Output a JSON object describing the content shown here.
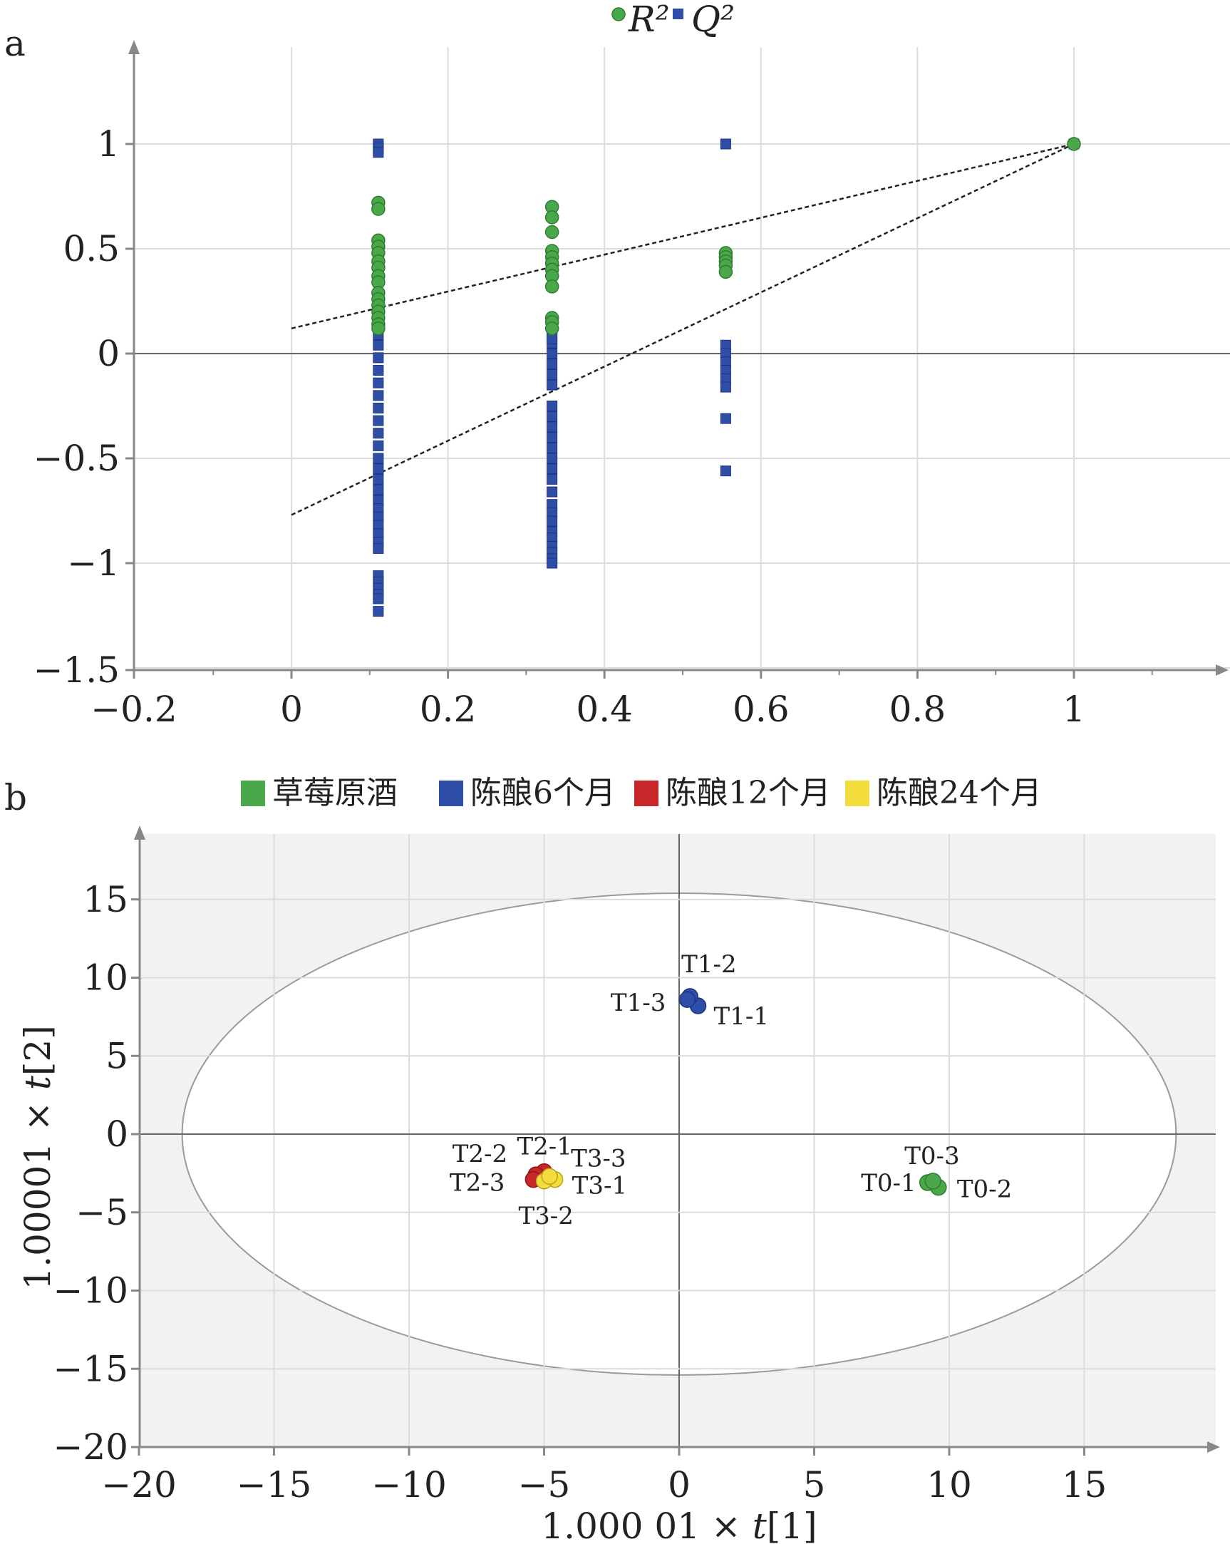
{
  "colors": {
    "green": "#4aa84a",
    "green_stroke": "#2e7d32",
    "blue": "#2f4ea8",
    "red": "#c8262b",
    "yellow": "#f3dd3c",
    "grid": "#dcdcdc",
    "panel_bg": "#f2f2f2",
    "axis": "#888888"
  },
  "chart_data": [
    {
      "panel": "a",
      "type": "scatter",
      "legend": [
        "R²",
        "Q²"
      ],
      "legend_placement": "top-center",
      "xlim": [
        -0.2,
        1.2
      ],
      "ylim": [
        -1.5,
        1.5
      ],
      "xticks": [
        "-0.2",
        "0",
        "0.2",
        "0.4",
        "0.6",
        "0.8",
        "1"
      ],
      "yticks": [
        "-1.5",
        "-1",
        "-0.5",
        "0",
        "0.5",
        "1"
      ],
      "xtick_values": [
        -0.2,
        0,
        0.2,
        0.4,
        0.6,
        0.8,
        1
      ],
      "ytick_values": [
        -1.5,
        -1,
        -0.5,
        0,
        0.5,
        1
      ],
      "grid": true,
      "series": [
        {
          "name": "R²",
          "marker": "circle",
          "x": [
            0.111,
            0.111,
            0.111,
            0.111,
            0.111,
            0.111,
            0.111,
            0.111,
            0.111,
            0.111,
            0.111,
            0.111,
            0.111,
            0.111,
            0.111,
            0.111,
            0.333,
            0.333,
            0.333,
            0.333,
            0.333,
            0.333,
            0.333,
            0.333,
            0.333,
            0.333,
            0.333,
            0.333,
            0.555,
            0.555,
            0.555,
            0.555,
            0.555,
            1.0
          ],
          "y": [
            0.72,
            0.69,
            0.54,
            0.51,
            0.48,
            0.44,
            0.41,
            0.37,
            0.34,
            0.29,
            0.26,
            0.23,
            0.2,
            0.17,
            0.14,
            0.12,
            0.7,
            0.65,
            0.58,
            0.49,
            0.46,
            0.43,
            0.4,
            0.37,
            0.32,
            0.17,
            0.15,
            0.12,
            0.48,
            0.46,
            0.44,
            0.42,
            0.39,
            1.0
          ]
        },
        {
          "name": "Q²",
          "marker": "square",
          "x": [
            0.111,
            0.111,
            0.111,
            0.111,
            0.111,
            0.111,
            0.111,
            0.111,
            0.111,
            0.111,
            0.111,
            0.111,
            0.111,
            0.111,
            0.111,
            0.111,
            0.111,
            0.111,
            0.111,
            0.111,
            0.111,
            0.111,
            0.111,
            0.111,
            0.111,
            0.111,
            0.111,
            0.111,
            0.111,
            0.111,
            0.333,
            0.333,
            0.333,
            0.333,
            0.333,
            0.333,
            0.333,
            0.333,
            0.333,
            0.333,
            0.333,
            0.333,
            0.333,
            0.333,
            0.333,
            0.333,
            0.333,
            0.333,
            0.333,
            0.333,
            0.333,
            0.333,
            0.333,
            0.333,
            0.333,
            0.555,
            0.555,
            0.555,
            0.555,
            0.555,
            0.555,
            0.555,
            0.555,
            0.555,
            1.0
          ],
          "y": [
            0.09,
            0.04,
            -0.02,
            -0.08,
            -0.14,
            -0.2,
            -0.26,
            -0.32,
            -0.38,
            -0.44,
            -0.5,
            -0.55,
            -0.6,
            -0.65,
            -0.7,
            -0.74,
            -0.78,
            -0.82,
            -0.86,
            -0.9,
            -0.93,
            -1.06,
            -1.09,
            -1.12,
            -1.15,
            -1.17,
            -1.23,
            1.0,
            0.98,
            0.96,
            0.1,
            0.05,
            0.0,
            -0.05,
            -0.1,
            -0.15,
            -0.25,
            -0.3,
            -0.35,
            -0.4,
            -0.45,
            -0.5,
            -0.55,
            -0.6,
            -0.66,
            -0.72,
            -0.76,
            -0.8,
            -0.85,
            -0.88,
            -0.92,
            -0.95,
            -0.98,
            -1.0,
            0.07,
            0.04,
            0.0,
            -0.04,
            -0.08,
            -0.12,
            -0.16,
            -0.31,
            -0.56,
            1.0,
            1.0
          ]
        }
      ],
      "trend_lines": [
        {
          "series": "R²",
          "x": [
            0,
            1
          ],
          "y": [
            0.12,
            1.0
          ]
        },
        {
          "series": "Q²",
          "x": [
            0,
            1
          ],
          "y": [
            -0.77,
            1.0
          ]
        }
      ]
    },
    {
      "panel": "b",
      "type": "scatter",
      "legend": [
        "草莓原酒",
        "陈酿6个月",
        "陈酿12个月",
        "陈酿24个月"
      ],
      "legend_placement": "top",
      "xlabel_prefix": "1.000 01 × ",
      "xlabel_var": "t",
      "xlabel_suffix": "[1]",
      "ylabel_prefix": "1.00001 × ",
      "ylabel_var": "t",
      "ylabel_suffix": "[2]",
      "xlim": [
        -20,
        20
      ],
      "ylim": [
        -20,
        20
      ],
      "xticks": [
        "-20",
        "-15",
        "-10",
        "-5",
        "0",
        "5",
        "10",
        "15"
      ],
      "yticks": [
        "-20",
        "-15",
        "-10",
        "-5",
        "0",
        "5",
        "10",
        "15"
      ],
      "xtick_values": [
        -20,
        -15,
        -10,
        -5,
        0,
        5,
        10,
        15
      ],
      "ytick_values": [
        -20,
        -15,
        -10,
        -5,
        0,
        5,
        10,
        15
      ],
      "grid": true,
      "ellipse": {
        "cx": 0,
        "cy": 0,
        "rx": 18.4,
        "ry": 15.4
      },
      "series": [
        {
          "name": "草莓原酒",
          "points": [
            {
              "label": "T0-1",
              "x": 9.2,
              "y": -3.1
            },
            {
              "label": "T0-2",
              "x": 9.6,
              "y": -3.4
            },
            {
              "label": "T0-3",
              "x": 9.4,
              "y": -3.0
            }
          ]
        },
        {
          "name": "陈酿6个月",
          "points": [
            {
              "label": "T1-1",
              "x": 0.7,
              "y": 8.2
            },
            {
              "label": "T1-2",
              "x": 0.4,
              "y": 8.8
            },
            {
              "label": "T1-3",
              "x": 0.3,
              "y": 8.6
            }
          ]
        },
        {
          "name": "陈酿12个月",
          "points": [
            {
              "label": "T2-1",
              "x": -5.0,
              "y": -2.4
            },
            {
              "label": "T2-2",
              "x": -5.3,
              "y": -2.6
            },
            {
              "label": "T2-3",
              "x": -5.4,
              "y": -2.9
            }
          ]
        },
        {
          "name": "陈酿24个月",
          "points": [
            {
              "label": "T3-1",
              "x": -4.6,
              "y": -2.9
            },
            {
              "label": "T3-2",
              "x": -5.0,
              "y": -3.0
            },
            {
              "label": "T3-3",
              "x": -4.8,
              "y": -2.7
            }
          ]
        }
      ]
    }
  ],
  "panel_a_label": "a",
  "panel_b_label": "b"
}
